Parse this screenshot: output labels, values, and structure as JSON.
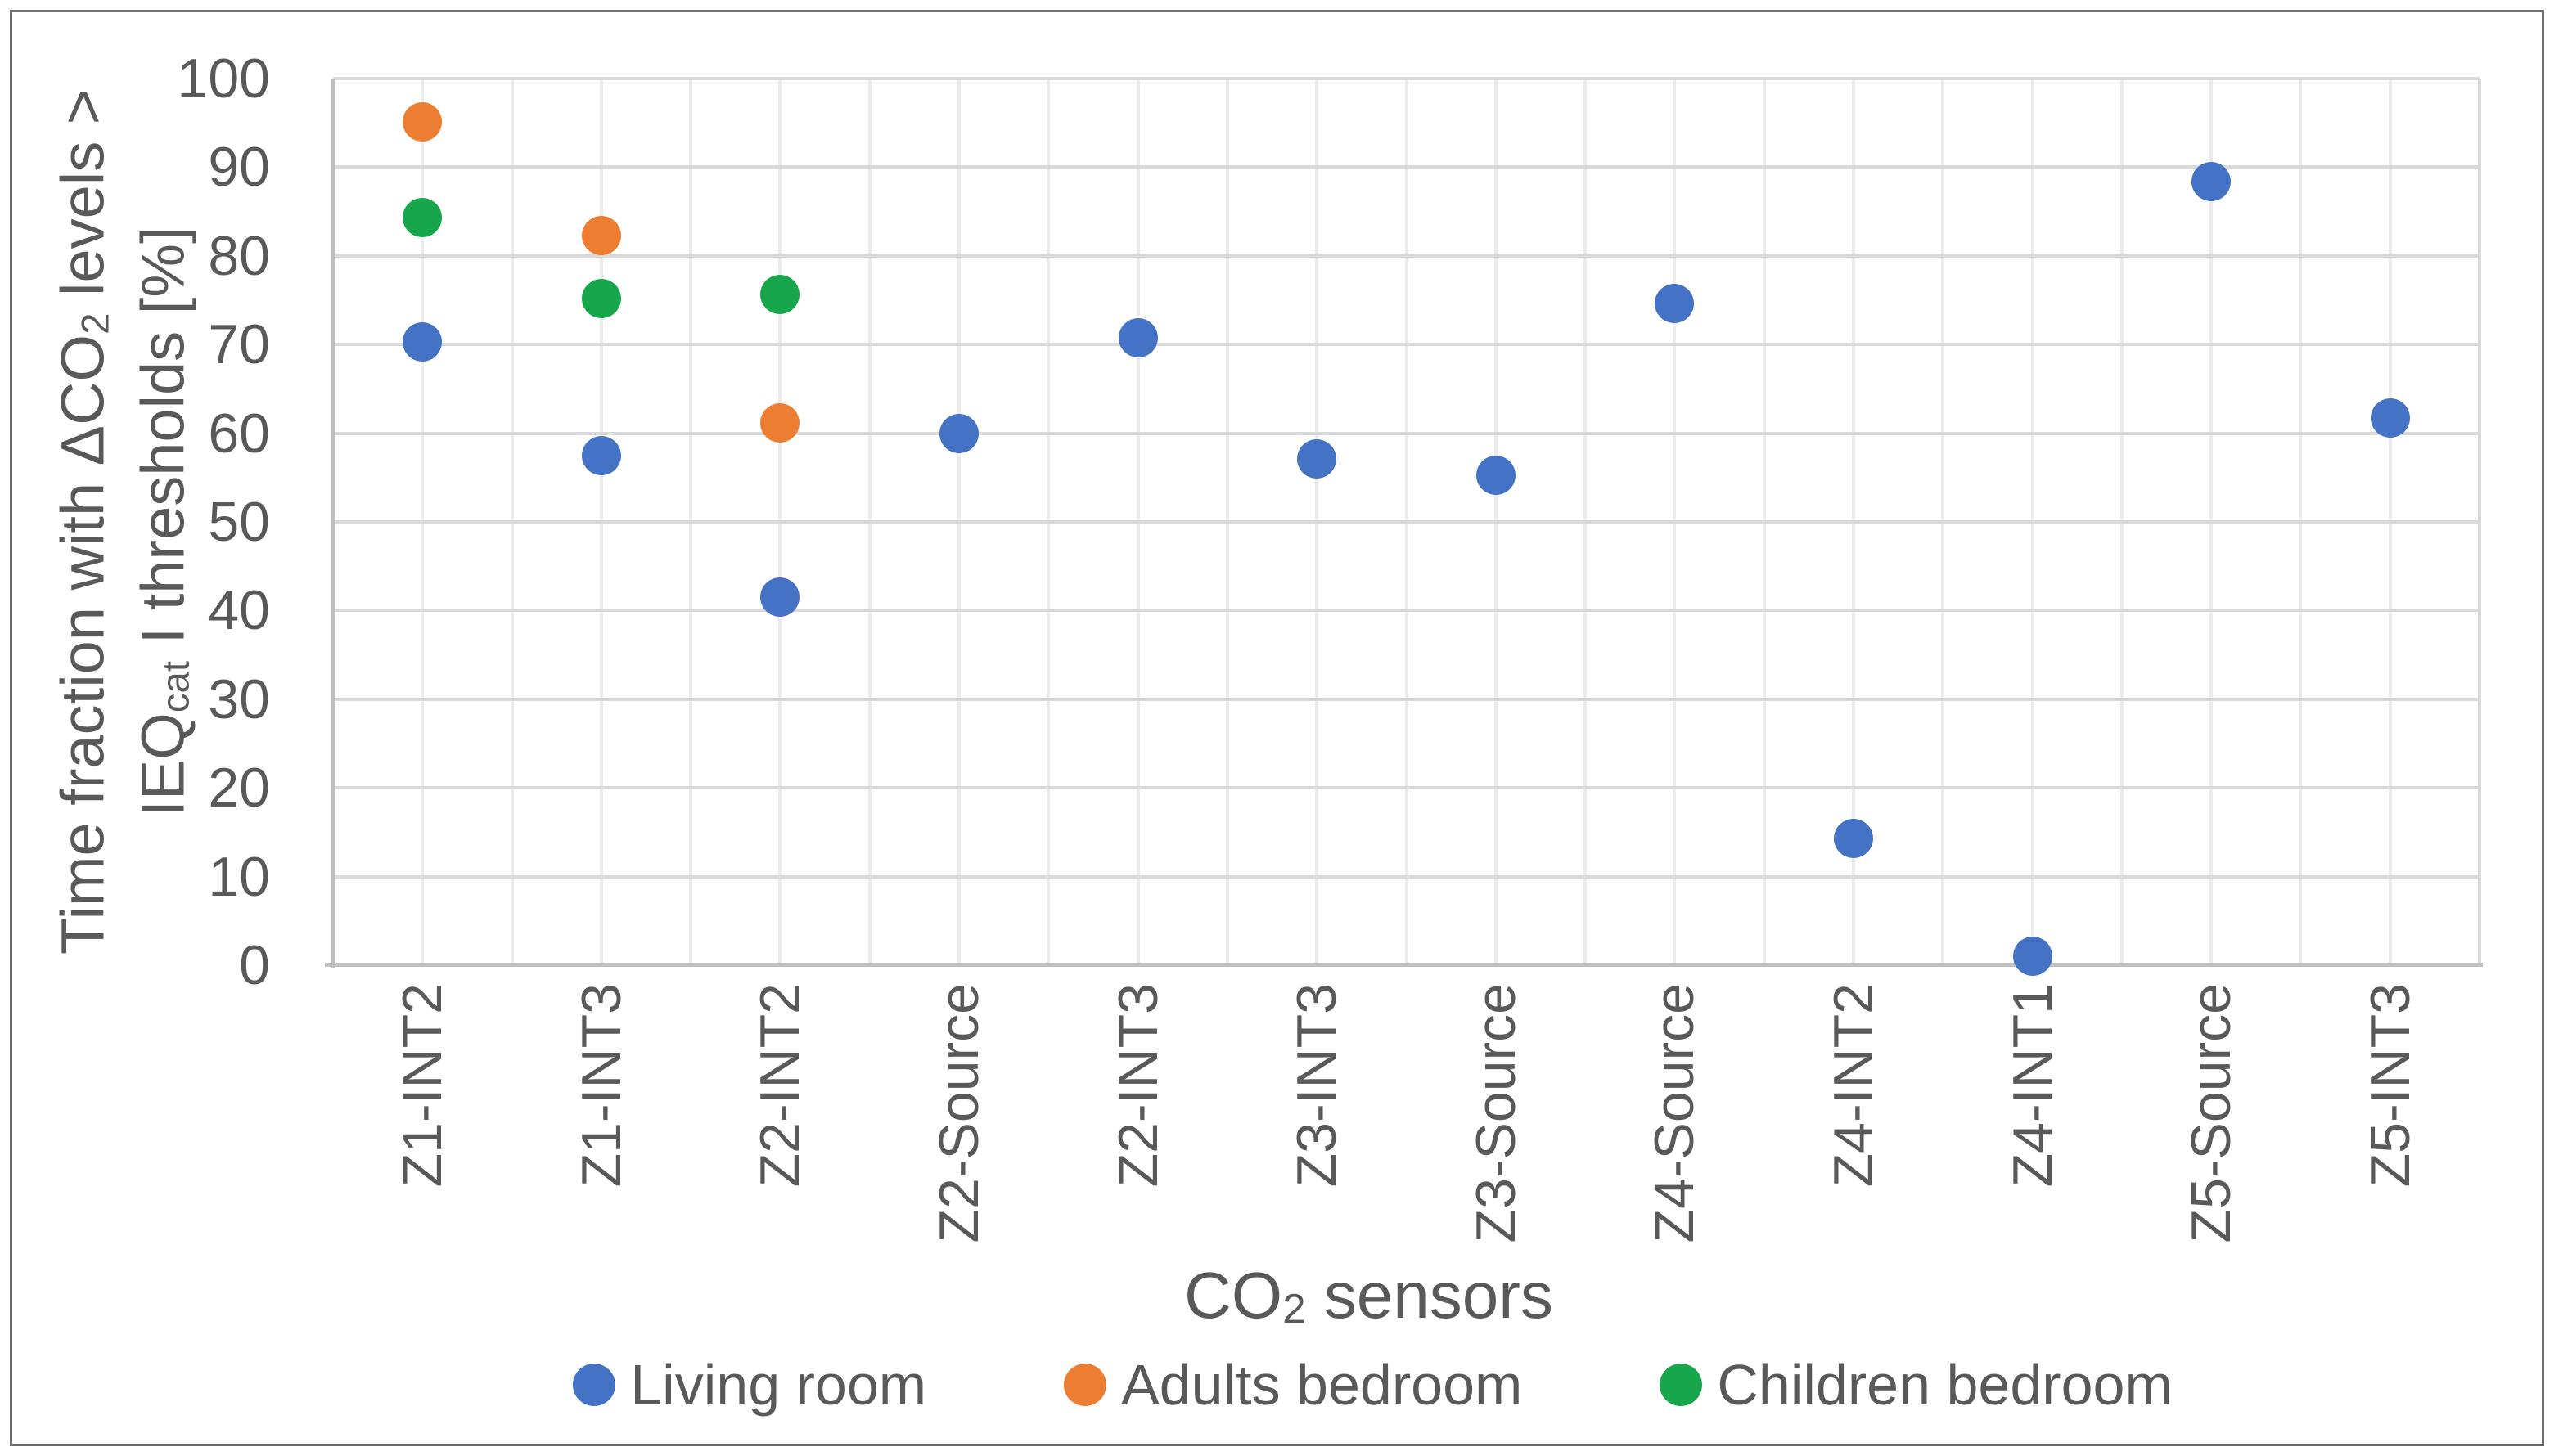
{
  "chart_data": {
    "type": "scatter",
    "title": "",
    "categories": [
      "Z1-INT2",
      "Z1-INT3",
      "Z2-INT2",
      "Z2-Source",
      "Z2-INT3",
      "Z3-INT3",
      "Z3-Source",
      "Z4-Source",
      "Z4-INT2",
      "Z4-INT1",
      "Z5-Source",
      "Z5-INT3"
    ],
    "series": [
      {
        "name": "Living room",
        "color": "#4472C4",
        "values": [
          70.3,
          57.5,
          41.5,
          60.0,
          70.8,
          57.1,
          55.3,
          74.6,
          14.3,
          1.0,
          88.4,
          61.7
        ]
      },
      {
        "name": "Adults bedroom",
        "color": "#ED7D31",
        "values": [
          95.1,
          82.3,
          61.2,
          null,
          null,
          null,
          null,
          null,
          null,
          null,
          null,
          null
        ]
      },
      {
        "name": "Children bedroom",
        "color": "#18A64D",
        "values": [
          84.3,
          75.2,
          75.6,
          null,
          null,
          null,
          null,
          null,
          null,
          null,
          null,
          null
        ]
      }
    ],
    "ylim": [
      0,
      100
    ],
    "yticks": [
      0,
      10,
      20,
      30,
      40,
      50,
      60,
      70,
      80,
      90,
      100
    ],
    "ylabel": {
      "line1": {
        "pre": "Time fraction with ΔCO",
        "sub": "2",
        "post": " levels >"
      },
      "line2": {
        "pre": "IEQ",
        "sub": "cat",
        "post": " I thresholds [%]"
      }
    },
    "xlabel": {
      "pre": "CO",
      "sub": "2",
      "post": " sensors"
    },
    "legend_position": "bottom",
    "grid": {
      "horizontal": true,
      "vertical": true
    },
    "axis_color": "#BFBFBF",
    "gridline_color": "#D9D9D9",
    "text_color": "#595959"
  }
}
